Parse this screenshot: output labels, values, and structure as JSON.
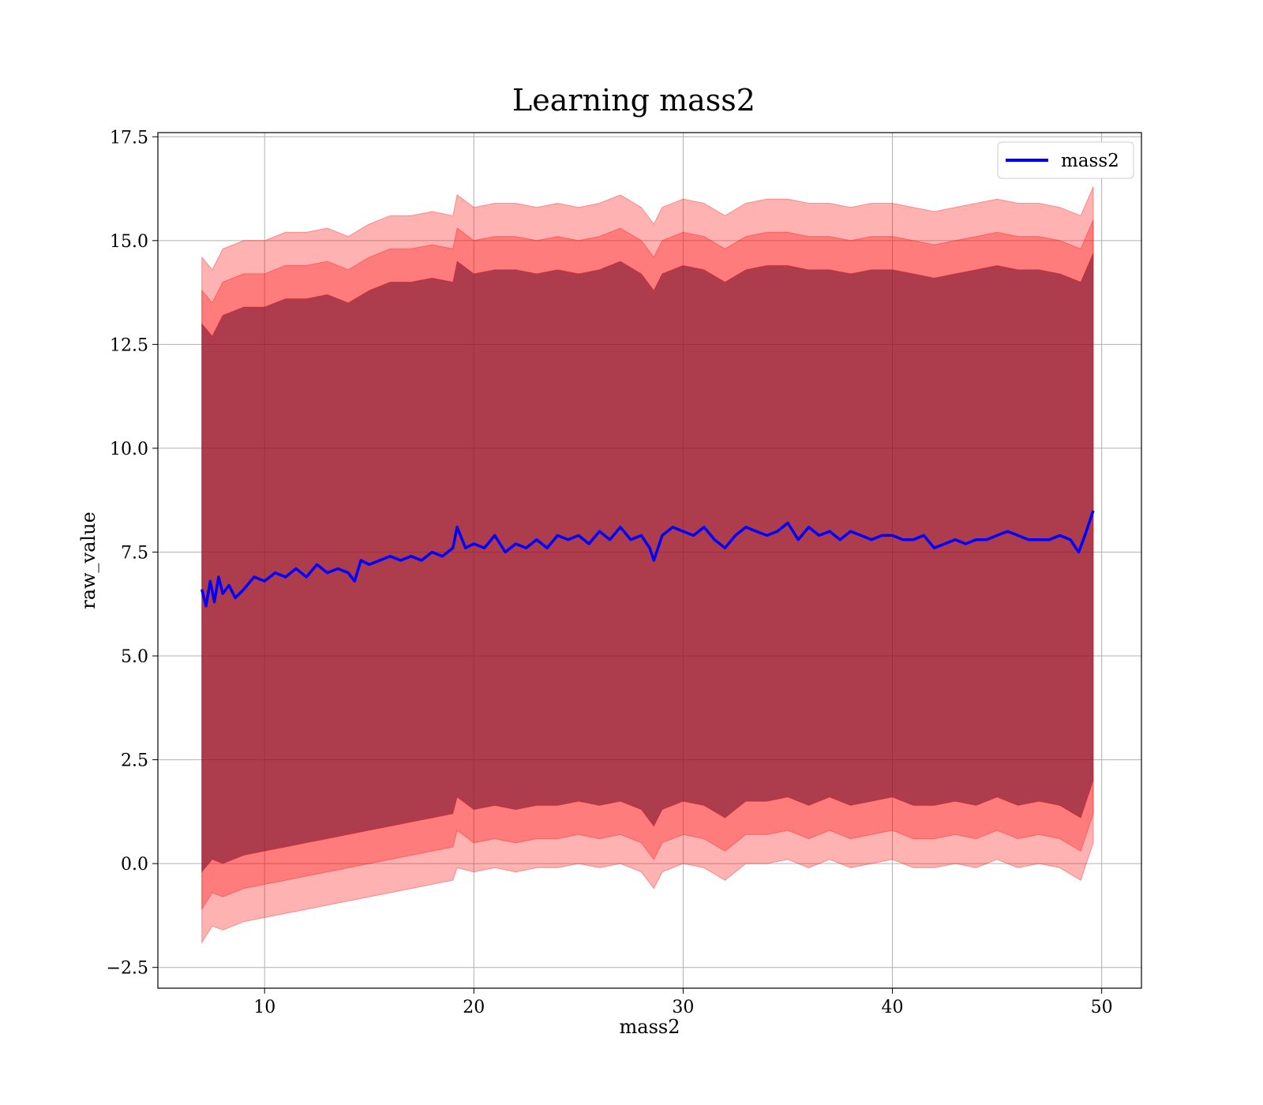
{
  "chart_data": {
    "type": "line",
    "title": "Learning mass2",
    "xlabel": "mass2",
    "ylabel": "raw_value",
    "xlim": [
      4.9,
      51.9
    ],
    "ylim": [
      -3.0,
      17.6
    ],
    "xticks": [
      10,
      20,
      30,
      40,
      50
    ],
    "xtick_labels": [
      "10",
      "20",
      "30",
      "40",
      "50"
    ],
    "yticks": [
      -2.5,
      0.0,
      2.5,
      5.0,
      7.5,
      10.0,
      12.5,
      15.0,
      17.5
    ],
    "ytick_labels": [
      "−2.5",
      "0.0",
      "2.5",
      "5.0",
      "7.5",
      "10.0",
      "12.5",
      "15.0",
      "17.5"
    ],
    "grid": true,
    "legend": {
      "position": "top-right",
      "entries": [
        "mass2"
      ]
    },
    "colors": {
      "line": "#0000ff",
      "band": "#ff0000"
    },
    "series": [
      {
        "name": "mass2",
        "x": [
          7.0,
          7.2,
          7.4,
          7.6,
          7.8,
          8.0,
          8.3,
          8.6,
          9.0,
          9.5,
          10.0,
          10.5,
          11.0,
          11.5,
          12.0,
          12.5,
          13.0,
          13.5,
          14.0,
          14.3,
          14.6,
          15.0,
          15.5,
          16.0,
          16.5,
          17.0,
          17.5,
          18.0,
          18.5,
          19.0,
          19.2,
          19.6,
          20.0,
          20.5,
          21.0,
          21.5,
          22.0,
          22.5,
          23.0,
          23.5,
          24.0,
          24.5,
          25.0,
          25.5,
          26.0,
          26.5,
          27.0,
          27.5,
          28.0,
          28.4,
          28.6,
          29.0,
          29.5,
          30.0,
          30.5,
          31.0,
          31.5,
          32.0,
          32.5,
          33.0,
          33.5,
          34.0,
          34.5,
          35.0,
          35.5,
          36.0,
          36.5,
          37.0,
          37.5,
          38.0,
          38.5,
          39.0,
          39.5,
          40.0,
          40.5,
          41.0,
          41.5,
          42.0,
          42.5,
          43.0,
          43.5,
          44.0,
          44.5,
          45.0,
          45.5,
          46.0,
          46.5,
          47.0,
          47.5,
          48.0,
          48.5,
          48.9,
          49.2,
          49.6
        ],
        "y": [
          6.6,
          6.2,
          6.8,
          6.3,
          6.9,
          6.5,
          6.7,
          6.4,
          6.6,
          6.9,
          6.8,
          7.0,
          6.9,
          7.1,
          6.9,
          7.2,
          7.0,
          7.1,
          7.0,
          6.8,
          7.3,
          7.2,
          7.3,
          7.4,
          7.3,
          7.4,
          7.3,
          7.5,
          7.4,
          7.6,
          8.1,
          7.6,
          7.7,
          7.6,
          7.9,
          7.5,
          7.7,
          7.6,
          7.8,
          7.6,
          7.9,
          7.8,
          7.9,
          7.7,
          8.0,
          7.8,
          8.1,
          7.8,
          7.9,
          7.6,
          7.3,
          7.9,
          8.1,
          8.0,
          7.9,
          8.1,
          7.8,
          7.6,
          7.9,
          8.1,
          8.0,
          7.9,
          8.0,
          8.2,
          7.8,
          8.1,
          7.9,
          8.0,
          7.8,
          8.0,
          7.9,
          7.8,
          7.9,
          7.9,
          7.8,
          7.8,
          7.9,
          7.6,
          7.7,
          7.8,
          7.7,
          7.8,
          7.8,
          7.9,
          8.0,
          7.9,
          7.8,
          7.8,
          7.8,
          7.9,
          7.8,
          7.5,
          7.9,
          8.5
        ]
      }
    ],
    "bands": [
      {
        "x": [
          7.0,
          7.5,
          8.0,
          9.0,
          10.0,
          11.0,
          12.0,
          13.0,
          14.0,
          15.0,
          16.0,
          17.0,
          18.0,
          19.0,
          19.2,
          20.0,
          21.0,
          22.0,
          23.0,
          24.0,
          25.0,
          26.0,
          27.0,
          28.0,
          28.6,
          29.0,
          30.0,
          31.0,
          32.0,
          33.0,
          34.0,
          35.0,
          36.0,
          37.0,
          38.0,
          39.0,
          40.0,
          41.0,
          42.0,
          43.0,
          44.0,
          45.0,
          46.0,
          47.0,
          48.0,
          49.0,
          49.6
        ],
        "lower": [
          -1.9,
          -1.5,
          -1.6,
          -1.4,
          -1.3,
          -1.2,
          -1.1,
          -1.0,
          -0.9,
          -0.8,
          -0.7,
          -0.6,
          -0.5,
          -0.4,
          -0.1,
          -0.2,
          -0.1,
          -0.2,
          -0.1,
          -0.1,
          0.0,
          -0.1,
          0.0,
          -0.2,
          -0.6,
          -0.2,
          0.0,
          -0.1,
          -0.4,
          0.0,
          0.0,
          0.1,
          -0.1,
          0.1,
          -0.1,
          0.0,
          0.1,
          -0.1,
          -0.1,
          0.0,
          -0.1,
          0.1,
          -0.1,
          0.0,
          -0.1,
          -0.4,
          0.5
        ],
        "upper": [
          14.6,
          14.3,
          14.8,
          15.0,
          15.0,
          15.2,
          15.2,
          15.3,
          15.1,
          15.4,
          15.6,
          15.6,
          15.7,
          15.6,
          16.1,
          15.8,
          15.9,
          15.9,
          15.8,
          15.9,
          15.8,
          15.9,
          16.1,
          15.8,
          15.4,
          15.8,
          16.0,
          15.9,
          15.6,
          15.9,
          16.0,
          16.0,
          15.9,
          15.9,
          15.8,
          15.9,
          15.9,
          15.8,
          15.7,
          15.8,
          15.9,
          16.0,
          15.9,
          15.9,
          15.8,
          15.6,
          16.3
        ]
      },
      {
        "x": [
          7.0,
          7.5,
          8.0,
          9.0,
          10.0,
          11.0,
          12.0,
          13.0,
          14.0,
          15.0,
          16.0,
          17.0,
          18.0,
          19.0,
          19.2,
          20.0,
          21.0,
          22.0,
          23.0,
          24.0,
          25.0,
          26.0,
          27.0,
          28.0,
          28.6,
          29.0,
          30.0,
          31.0,
          32.0,
          33.0,
          34.0,
          35.0,
          36.0,
          37.0,
          38.0,
          39.0,
          40.0,
          41.0,
          42.0,
          43.0,
          44.0,
          45.0,
          46.0,
          47.0,
          48.0,
          49.0,
          49.6
        ],
        "lower": [
          -1.1,
          -0.7,
          -0.8,
          -0.6,
          -0.5,
          -0.4,
          -0.3,
          -0.2,
          -0.1,
          0.0,
          0.1,
          0.2,
          0.3,
          0.4,
          0.8,
          0.5,
          0.6,
          0.5,
          0.6,
          0.6,
          0.7,
          0.6,
          0.7,
          0.5,
          0.1,
          0.5,
          0.7,
          0.6,
          0.3,
          0.7,
          0.7,
          0.8,
          0.6,
          0.8,
          0.6,
          0.7,
          0.8,
          0.6,
          0.6,
          0.7,
          0.6,
          0.8,
          0.6,
          0.7,
          0.6,
          0.3,
          1.2
        ],
        "upper": [
          13.8,
          13.5,
          14.0,
          14.2,
          14.2,
          14.4,
          14.4,
          14.5,
          14.3,
          14.6,
          14.8,
          14.8,
          14.9,
          14.8,
          15.3,
          15.0,
          15.1,
          15.1,
          15.0,
          15.1,
          15.0,
          15.1,
          15.3,
          15.0,
          14.6,
          15.0,
          15.2,
          15.1,
          14.8,
          15.1,
          15.2,
          15.2,
          15.1,
          15.1,
          15.0,
          15.1,
          15.1,
          15.0,
          14.9,
          15.0,
          15.1,
          15.2,
          15.1,
          15.1,
          15.0,
          14.8,
          15.5
        ]
      },
      {
        "x": [
          7.0,
          7.5,
          8.0,
          9.0,
          10.0,
          11.0,
          12.0,
          13.0,
          14.0,
          15.0,
          16.0,
          17.0,
          18.0,
          19.0,
          19.2,
          20.0,
          21.0,
          22.0,
          23.0,
          24.0,
          25.0,
          26.0,
          27.0,
          28.0,
          28.6,
          29.0,
          30.0,
          31.0,
          32.0,
          33.0,
          34.0,
          35.0,
          36.0,
          37.0,
          38.0,
          39.0,
          40.0,
          41.0,
          42.0,
          43.0,
          44.0,
          45.0,
          46.0,
          47.0,
          48.0,
          49.0,
          49.6
        ],
        "lower": [
          -0.2,
          0.1,
          0.0,
          0.2,
          0.3,
          0.4,
          0.5,
          0.6,
          0.7,
          0.8,
          0.9,
          1.0,
          1.1,
          1.2,
          1.6,
          1.3,
          1.4,
          1.3,
          1.4,
          1.4,
          1.5,
          1.4,
          1.5,
          1.3,
          0.9,
          1.3,
          1.5,
          1.4,
          1.1,
          1.5,
          1.5,
          1.6,
          1.4,
          1.6,
          1.4,
          1.5,
          1.6,
          1.4,
          1.4,
          1.5,
          1.4,
          1.6,
          1.4,
          1.5,
          1.4,
          1.1,
          2.0
        ],
        "upper": [
          13.0,
          12.7,
          13.2,
          13.4,
          13.4,
          13.6,
          13.6,
          13.7,
          13.5,
          13.8,
          14.0,
          14.0,
          14.1,
          14.0,
          14.5,
          14.2,
          14.3,
          14.3,
          14.2,
          14.3,
          14.2,
          14.3,
          14.5,
          14.2,
          13.8,
          14.2,
          14.4,
          14.3,
          14.0,
          14.3,
          14.4,
          14.4,
          14.3,
          14.3,
          14.2,
          14.3,
          14.3,
          14.2,
          14.1,
          14.2,
          14.3,
          14.4,
          14.3,
          14.3,
          14.2,
          14.0,
          14.7
        ]
      }
    ]
  }
}
